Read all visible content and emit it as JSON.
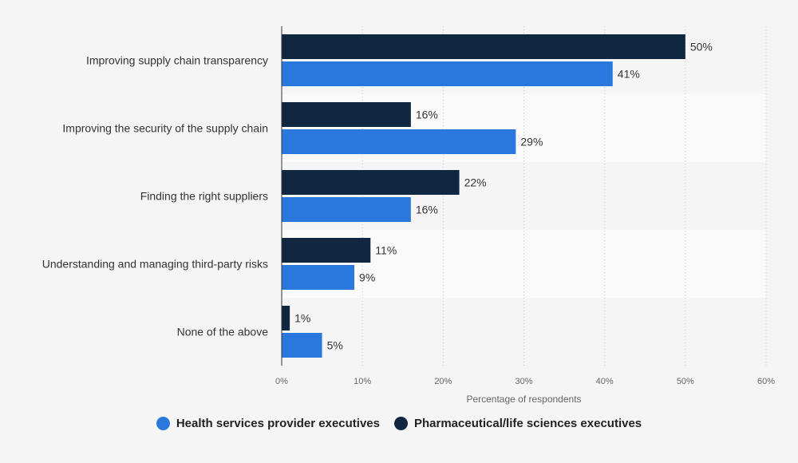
{
  "chart_data": {
    "type": "bar",
    "orientation": "horizontal",
    "categories": [
      "Improving supply chain transparency",
      "Improving the security of the supply chain",
      "Finding the right suppliers",
      "Understanding and managing third-party risks",
      "None of the above"
    ],
    "series": [
      {
        "name": "Pharmaceutical/life sciences executives",
        "color": "#0f2740",
        "values": [
          50,
          16,
          22,
          11,
          1
        ],
        "labels": [
          "50%",
          "16%",
          "22%",
          "11%",
          "1%"
        ]
      },
      {
        "name": "Health services provider executives",
        "color": "#2a78de",
        "values": [
          41,
          29,
          16,
          9,
          5
        ],
        "labels": [
          "41%",
          "29%",
          "16%",
          "9%",
          "5%"
        ]
      }
    ],
    "xlabel": "Percentage of respondents",
    "xlim": [
      0,
      60
    ],
    "ticks": [
      0,
      10,
      20,
      30,
      40,
      50,
      60
    ],
    "tick_labels": [
      "0%",
      "10%",
      "20%",
      "30%",
      "40%",
      "50%",
      "60%"
    ],
    "grid": true,
    "legend_position": "bottom"
  },
  "legend": [
    {
      "label": "Health services provider executives",
      "color": "#2a78de"
    },
    {
      "label": "Pharmaceutical/life sciences executives",
      "color": "#0f2740"
    }
  ]
}
